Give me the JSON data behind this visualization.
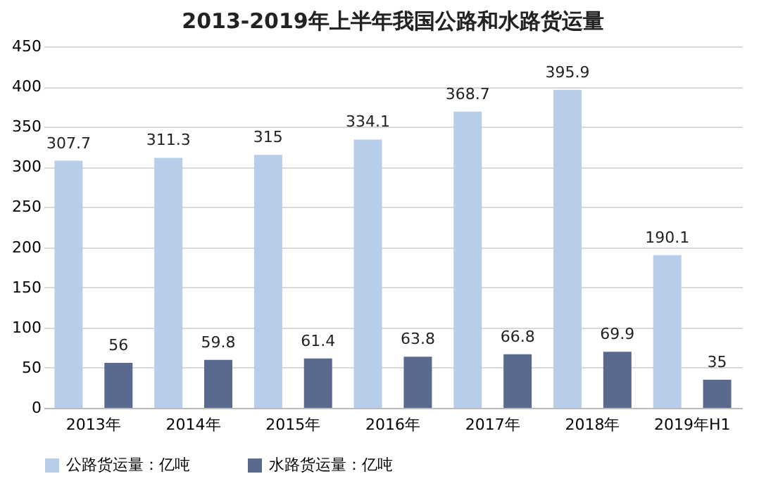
{
  "chart_data": {
    "type": "bar",
    "title": "2013-2019年上半年我国公路和水路货运量",
    "categories": [
      "2013年",
      "2014年",
      "2015年",
      "2016年",
      "2017年",
      "2018年",
      "2019年H1"
    ],
    "series": [
      {
        "name": "公路货运量：亿吨",
        "color": "#b7cde9",
        "values": [
          307.7,
          311.3,
          315,
          334.1,
          368.7,
          395.9,
          190.1
        ]
      },
      {
        "name": "水路货运量：亿吨",
        "color": "#5a6a8e",
        "values": [
          56,
          59.8,
          61.4,
          63.8,
          66.8,
          69.9,
          35
        ]
      }
    ],
    "ylim": [
      0,
      450
    ],
    "yticks": [
      0,
      50,
      100,
      150,
      200,
      250,
      300,
      350,
      400,
      450
    ],
    "grid": "y",
    "legend": "bottom",
    "data_labels": true
  }
}
